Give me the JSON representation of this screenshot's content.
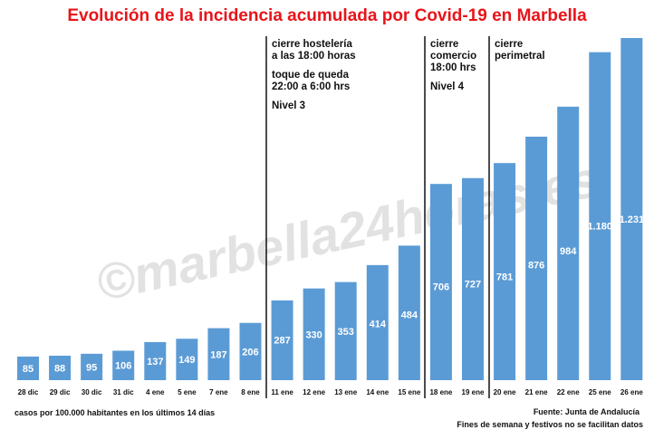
{
  "chart_data": {
    "type": "bar",
    "title": "Evolución de la incidencia acumulada por Covid-19 en Marbella",
    "categories": [
      "28 dic",
      "29 dic",
      "30 dic",
      "31 dic",
      "4 ene",
      "5 ene",
      "7 ene",
      "8 ene",
      "11 ene",
      "12 ene",
      "13 ene",
      "14 ene",
      "15 ene",
      "18 ene",
      "19 ene",
      "20 ene",
      "21 ene",
      "22 ene",
      "25 ene",
      "26 ene"
    ],
    "values": [
      85,
      88,
      95,
      106,
      137,
      149,
      187,
      206,
      287,
      330,
      353,
      414,
      484,
      706,
      727,
      781,
      876,
      984,
      1180,
      1231
    ],
    "value_labels": [
      "85",
      "88",
      "95",
      "106",
      "137",
      "149",
      "187",
      "206",
      "287",
      "330",
      "353",
      "414",
      "484",
      "706",
      "727",
      "781",
      "876",
      "984",
      "1.180",
      "1.231"
    ],
    "ylim": [
      0,
      1231
    ],
    "grid": false,
    "legend": false,
    "bar_color": "#5b9bd5",
    "title_color": "#e8141a",
    "annotations": [
      {
        "after_category": "8 ene",
        "lines": [
          "cierre hostelería",
          "a las 18:00 horas",
          "",
          "toque de queda",
          "22:00 a 6:00 hrs",
          "",
          "Nivel 3"
        ]
      },
      {
        "after_category": "15 ene",
        "lines": [
          "cierre",
          "comercio",
          "18:00 hrs",
          "",
          "Nivel 4"
        ]
      },
      {
        "after_category": "19 ene",
        "lines": [
          "cierre",
          "perimetral"
        ]
      }
    ],
    "footnote_left": "casos por 100.000 habitantes en los últimos 14 días",
    "source": "Fuente: Junta de Andalucía",
    "footnote_right": "Fines de semana y festivos no se facilitan datos",
    "watermark": "©marbella24horas.es"
  }
}
